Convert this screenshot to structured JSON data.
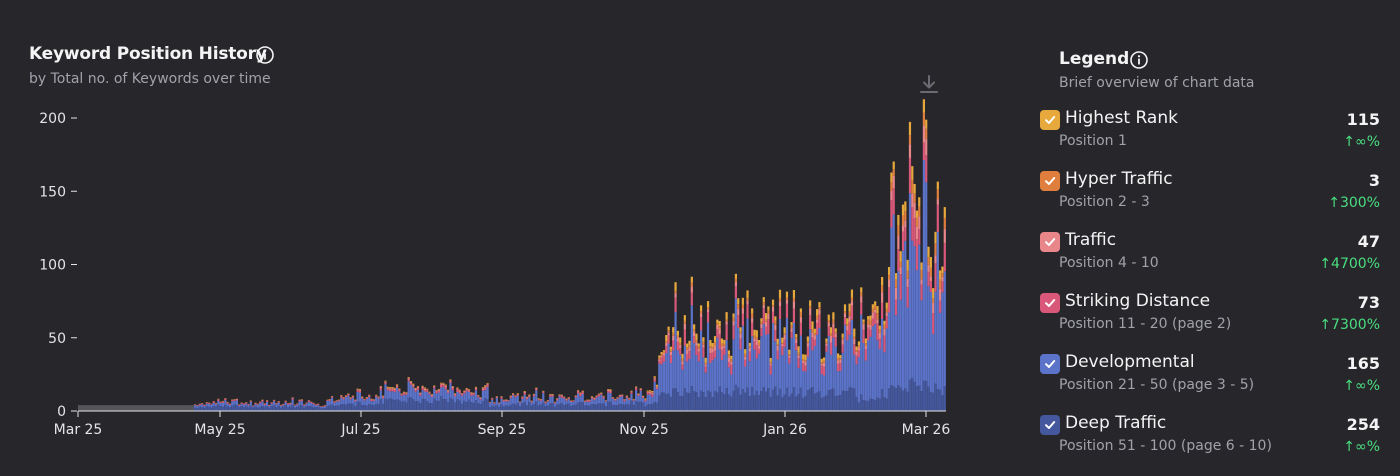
{
  "header": {
    "title": "Keyword Position History",
    "subtitle": "by Total no. of Keywords over time"
  },
  "legend": {
    "title": "Legend",
    "subtitle": "Brief overview of chart data",
    "items": [
      {
        "name": "Highest Rank",
        "position": "Position 1",
        "value": "115",
        "change": "↑∞%",
        "color": "#e8a93c",
        "checked": true
      },
      {
        "name": "Hyper Traffic",
        "position": "Position 2 - 3",
        "value": "3",
        "change": "↑300%",
        "color": "#e07f3d",
        "checked": true
      },
      {
        "name": "Traffic",
        "position": "Position 4 - 10",
        "value": "47",
        "change": "↑4700%",
        "color": "#e8868a",
        "checked": true
      },
      {
        "name": "Striking Distance",
        "position": "Position 11 - 20 (page 2)",
        "value": "73",
        "change": "↑7300%",
        "color": "#d9587a",
        "checked": true
      },
      {
        "name": "Developmental",
        "position": "Position 21 - 50 (page 3 - 5)",
        "value": "165",
        "change": "↑∞%",
        "color": "#5b73c9",
        "checked": true
      },
      {
        "name": "Deep Traffic",
        "position": "Position 51 - 100 (page 6 - 10)",
        "value": "254",
        "change": "↑∞%",
        "color": "#45589e",
        "checked": true
      }
    ]
  },
  "chart_data": {
    "type": "bar",
    "stacked": true,
    "x_ticks": [
      "Mar 25",
      "May 25",
      "Jul 25",
      "Sep 25",
      "Nov 25",
      "Jan 26",
      "Mar 26"
    ],
    "y_ticks": [
      "0",
      "50",
      "100",
      "150",
      "200"
    ],
    "ylim": [
      0,
      200
    ],
    "grid": false,
    "x_range": [
      "2025-03-01",
      "2026-03-10"
    ],
    "series_names": [
      "Deep Traffic",
      "Developmental",
      "Striking Distance",
      "Traffic",
      "Hyper Traffic",
      "Highest Rank"
    ],
    "series_colors": [
      "#45589e",
      "#5b73c9",
      "#d9587a",
      "#e8868a",
      "#e07f3d",
      "#e8a93c"
    ],
    "no_data_color": "#55555b",
    "segments": [
      {
        "from": "2025-03-01",
        "to": "2025-04-20",
        "totals": [
          4,
          4
        ],
        "no_data": true
      },
      {
        "from": "2025-04-20",
        "to": "2025-06-15",
        "totals": [
          5,
          8,
          6,
          7,
          5
        ],
        "share": [
          0.5,
          0.33,
          0.1,
          0.04,
          0.01,
          0.02
        ]
      },
      {
        "from": "2025-06-15",
        "to": "2025-07-01",
        "totals": [
          6,
          12,
          10,
          12
        ],
        "share": [
          0.45,
          0.4,
          0.07,
          0.04,
          0.02,
          0.02
        ]
      },
      {
        "from": "2025-07-01",
        "to": "2025-08-25",
        "totals": [
          12,
          15,
          18,
          16,
          19,
          14,
          17
        ],
        "share": [
          0.45,
          0.4,
          0.07,
          0.04,
          0.02,
          0.02
        ]
      },
      {
        "from": "2025-08-25",
        "to": "2025-10-31",
        "totals": [
          8,
          10,
          12,
          9,
          13,
          10,
          14,
          11
        ],
        "share": [
          0.45,
          0.4,
          0.07,
          0.04,
          0.02,
          0.02
        ]
      },
      {
        "from": "2025-10-31",
        "to": "2025-11-09",
        "totals": [
          10,
          20,
          30,
          45
        ],
        "share": [
          0.3,
          0.5,
          0.08,
          0.05,
          0.03,
          0.04
        ]
      },
      {
        "from": "2025-11-09",
        "to": "2026-01-31",
        "totals": [
          60,
          64,
          58,
          62,
          70,
          65,
          58,
          63,
          60,
          67,
          62
        ],
        "share": [
          0.22,
          0.53,
          0.11,
          0.05,
          0.03,
          0.06
        ]
      },
      {
        "from": "2026-01-31",
        "to": "2026-03-10",
        "totals": [
          75,
          85,
          95,
          110,
          135,
          150,
          160,
          145,
          135,
          140
        ],
        "share": [
          0.12,
          0.63,
          0.11,
          0.05,
          0.04,
          0.05
        ]
      }
    ]
  },
  "icons": {
    "info": "info-circle-icon",
    "download": "download-icon",
    "check": "check-icon"
  }
}
